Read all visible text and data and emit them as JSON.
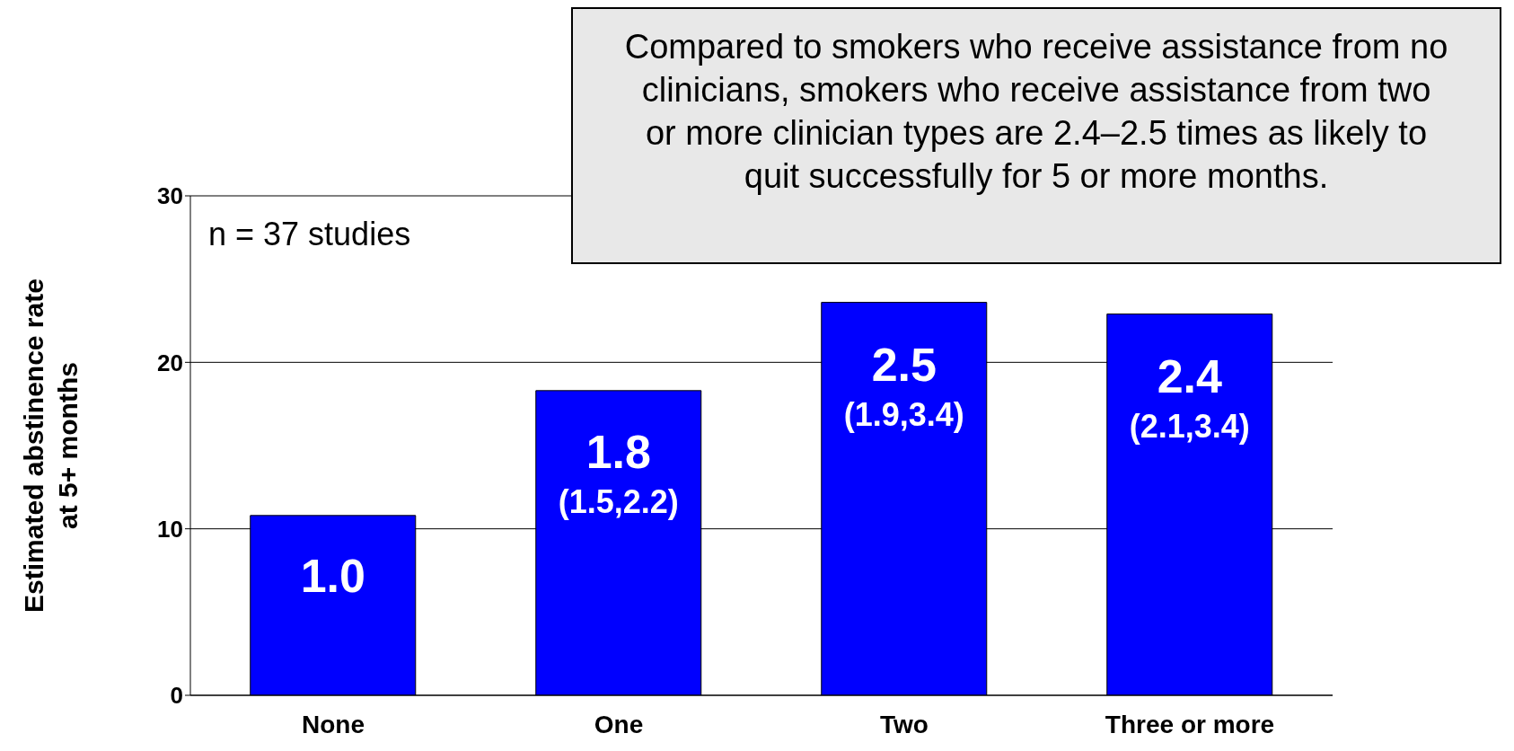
{
  "chart_data": {
    "type": "bar",
    "ylabel": "Estimated abstinence rate\nat 5+ months",
    "categories": [
      "None",
      "One",
      "Two",
      "Three or more"
    ],
    "values": [
      10.8,
      18.3,
      23.6,
      22.9
    ],
    "color": "#0000ff",
    "ylim": [
      0,
      30
    ],
    "yticks": [
      0,
      10,
      20,
      30
    ],
    "grid": "y",
    "annotations": [
      {
        "text": "1.0",
        "x": "None",
        "y": 10.8
      },
      {
        "text": "1.8\n(1.5,2.2)",
        "x": "One",
        "y": 18.3
      },
      {
        "text": "2.5\n(1.9,3.4)",
        "x": "Two",
        "y": 23.6
      },
      {
        "text": "2.4\n(2.1,3.4)",
        "x": "Three or more",
        "y": 22.9
      },
      "n = 37 studies",
      "Compared to smokers who receive assistance from no clinicians, smokers who receive assistance from two or more clinician types are 2.4–2.5 times as likely to quit successfully for 5 or more months."
    ]
  }
}
